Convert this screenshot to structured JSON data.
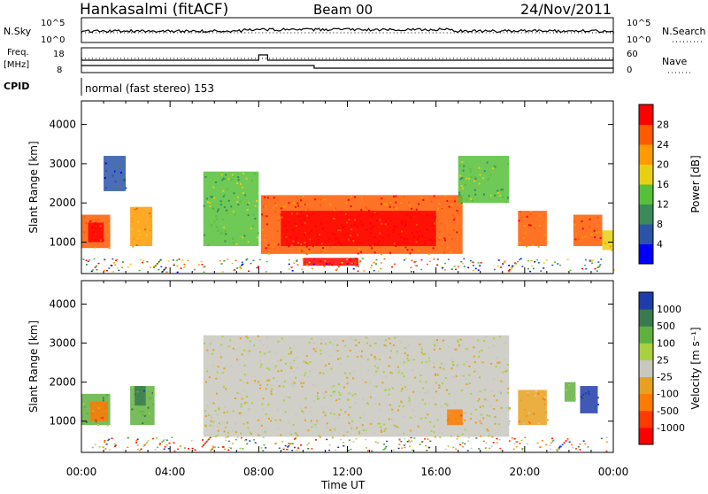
{
  "header": {
    "station": "Hankasalmi (fitACF)",
    "beam": "Beam 00",
    "date": "24/Nov/2011"
  },
  "status_panel": {
    "nsky_label": "N.Sky",
    "nsky_ticks": [
      "10^5",
      "10^0"
    ],
    "nsearch_label": "N.Search",
    "nsearch_ticks": [
      "10^5",
      "10^0"
    ],
    "freq_label": "Freq.",
    "freq_unit": "[MHz]",
    "freq_ticks": [
      18,
      8
    ],
    "nave_label": "Nave",
    "nave_ticks": [
      60,
      0
    ],
    "cpid_label": "CPID",
    "cpid_value": "normal (fast stereo) 153"
  },
  "colors": {
    "power_scale": [
      "#0000ff",
      "#2a54a8",
      "#3a8a5a",
      "#55c038",
      "#e8d010",
      "#ff9a00",
      "#ff5a00",
      "#ff0000"
    ],
    "velocity_scale": [
      "#1e3caa",
      "#3a7a50",
      "#60b040",
      "#a8d040",
      "#c8c8c0",
      "#e8a020",
      "#ff7a00",
      "#ff3a00",
      "#ff0000"
    ],
    "ground_scatter": "#c8c8c0"
  },
  "chart_data": [
    {
      "type": "heatmap",
      "ylabel": "Slant Range [km]",
      "y_ticks": [
        1000,
        2000,
        3000,
        4000
      ],
      "ylim": [
        200,
        4600
      ],
      "x_ticks": [
        "00:00",
        "04:00",
        "08:00",
        "12:00",
        "16:00",
        "20:00",
        "00:00"
      ],
      "xlim_hours": [
        0,
        24
      ],
      "colorbar": {
        "label": "Power [dB]",
        "ticks": [
          4,
          8,
          12,
          16,
          20,
          24,
          28
        ]
      },
      "regions": [
        {
          "t": [
            0.0,
            1.3
          ],
          "r": [
            850,
            1700
          ],
          "level": 6
        },
        {
          "t": [
            0.3,
            1.0
          ],
          "r": [
            1000,
            1500
          ],
          "level": 7
        },
        {
          "t": [
            2.2,
            3.2
          ],
          "r": [
            900,
            1900
          ],
          "level": 5
        },
        {
          "t": [
            1.0,
            2.0
          ],
          "r": [
            2300,
            3200
          ],
          "level": 1
        },
        {
          "t": [
            5.5,
            8.0
          ],
          "r": [
            900,
            2800
          ],
          "level": 3
        },
        {
          "t": [
            8.1,
            17.2
          ],
          "r": [
            700,
            2200
          ],
          "level": 6
        },
        {
          "t": [
            9.0,
            16.0
          ],
          "r": [
            900,
            1800
          ],
          "level": 7
        },
        {
          "t": [
            10.0,
            12.5
          ],
          "r": [
            400,
            600
          ],
          "level": 7
        },
        {
          "t": [
            17.0,
            19.3
          ],
          "r": [
            2000,
            3200
          ],
          "level": 3
        },
        {
          "t": [
            19.7,
            21.0
          ],
          "r": [
            900,
            1800
          ],
          "level": 6
        },
        {
          "t": [
            22.2,
            23.5
          ],
          "r": [
            900,
            1700
          ],
          "level": 6
        },
        {
          "t": [
            23.5,
            24.0
          ],
          "r": [
            800,
            1300
          ],
          "level": 4
        }
      ]
    },
    {
      "type": "heatmap",
      "ylabel": "Slant Range [km]",
      "y_ticks": [
        1000,
        2000,
        3000,
        4000
      ],
      "ylim": [
        200,
        4600
      ],
      "x_ticks": [
        "00:00",
        "04:00",
        "08:00",
        "12:00",
        "16:00",
        "20:00",
        "00:00"
      ],
      "xlim_hours": [
        0,
        24
      ],
      "xlabel": "Time UT",
      "colorbar": {
        "label": "Velocity [m s⁻¹]",
        "ticks": [
          1000,
          500,
          100,
          25,
          -25,
          -100,
          -500,
          -1000
        ]
      },
      "regions": [
        {
          "t": [
            0.0,
            1.3
          ],
          "r": [
            900,
            1700
          ],
          "level": 2
        },
        {
          "t": [
            0.4,
            1.2
          ],
          "r": [
            1000,
            1500
          ],
          "level": 6
        },
        {
          "t": [
            2.2,
            3.3
          ],
          "r": [
            900,
            1900
          ],
          "level": 2
        },
        {
          "t": [
            2.4,
            2.9
          ],
          "r": [
            1400,
            1900
          ],
          "level": 1
        },
        {
          "t": [
            5.5,
            19.3
          ],
          "r": [
            600,
            3200
          ],
          "level": 4
        },
        {
          "t": [
            16.5,
            17.2
          ],
          "r": [
            900,
            1300
          ],
          "level": 6
        },
        {
          "t": [
            19.7,
            21.0
          ],
          "r": [
            900,
            1800
          ],
          "level": 5
        },
        {
          "t": [
            22.5,
            23.3
          ],
          "r": [
            1200,
            1900
          ],
          "level": 0
        },
        {
          "t": [
            21.8,
            22.3
          ],
          "r": [
            1500,
            2000
          ],
          "level": 2
        }
      ]
    }
  ]
}
